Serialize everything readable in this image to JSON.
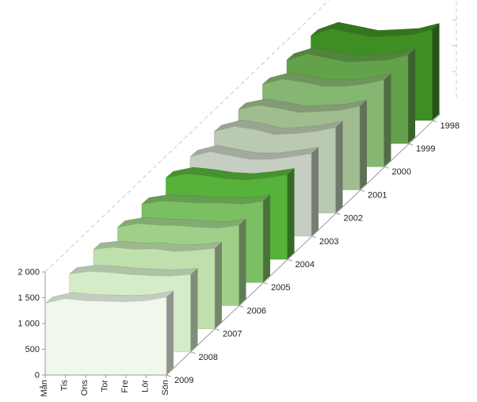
{
  "chart_data": {
    "type": "area",
    "variant": "3d-ribbon",
    "categories": [
      "Mån",
      "Tis",
      "Ons",
      "Tor",
      "Fre",
      "Lör",
      "Sön"
    ],
    "ylim": [
      0,
      2000
    ],
    "yticks": [
      0,
      500,
      1000,
      1500,
      2000
    ],
    "ytick_labels": [
      "0",
      "500",
      "1 000",
      "1 500",
      "2 000"
    ],
    "grid": false,
    "legend": "none",
    "series": [
      {
        "name": "2009",
        "color": "#eff8ea",
        "values": [
          1390,
          1480,
          1440,
          1430,
          1420,
          1440,
          1510
        ]
      },
      {
        "name": "2008",
        "color": "#d5ecc9",
        "values": [
          1510,
          1560,
          1540,
          1500,
          1480,
          1470,
          1500
        ]
      },
      {
        "name": "2007",
        "color": "#bfe0ac",
        "values": [
          1540,
          1580,
          1540,
          1550,
          1500,
          1520,
          1560
        ]
      },
      {
        "name": "2006",
        "color": "#9ed08a",
        "values": [
          1520,
          1590,
          1560,
          1550,
          1520,
          1500,
          1560
        ]
      },
      {
        "name": "2005",
        "color": "#7bbf63",
        "values": [
          1520,
          1580,
          1560,
          1540,
          1540,
          1520,
          1580
        ]
      },
      {
        "name": "2004",
        "color": "#56b23a",
        "values": [
          1580,
          1660,
          1620,
          1560,
          1540,
          1580,
          1640
        ]
      },
      {
        "name": "2003",
        "color": "#c6cec1",
        "values": [
          1540,
          1640,
          1560,
          1490,
          1490,
          1540,
          1600
        ]
      },
      {
        "name": "2002",
        "color": "#bac9b2",
        "values": [
          1580,
          1680,
          1620,
          1520,
          1540,
          1580,
          1660
        ]
      },
      {
        "name": "2001",
        "color": "#9fbd8f",
        "values": [
          1560,
          1640,
          1580,
          1500,
          1520,
          1540,
          1620
        ]
      },
      {
        "name": "2000",
        "color": "#85b672",
        "values": [
          1600,
          1700,
          1640,
          1560,
          1560,
          1600,
          1680
        ]
      },
      {
        "name": "1999",
        "color": "#63a24a",
        "values": [
          1620,
          1740,
          1660,
          1580,
          1600,
          1620,
          1720
        ]
      },
      {
        "name": "1998",
        "color": "#3e8e24",
        "values": [
          1640,
          1780,
          1700,
          1620,
          1640,
          1660,
          1760
        ]
      }
    ]
  }
}
